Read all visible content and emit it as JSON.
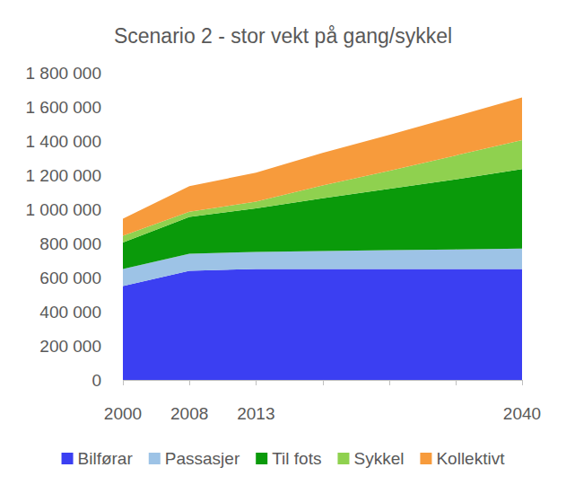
{
  "chart_data": {
    "type": "area",
    "stacked": true,
    "title": "Scenario 2 - stor vekt på gang/sykkel",
    "categories": [
      "2000",
      "2008",
      "2013",
      null,
      null,
      null,
      "2040"
    ],
    "series": [
      {
        "name": "Bilførar",
        "color": "#3b3ff2",
        "values": [
          550000,
          640000,
          650000,
          650000,
          650000,
          650000,
          650000
        ]
      },
      {
        "name": "Passasjer",
        "color": "#9dc3e6",
        "values": [
          100000,
          100000,
          100000,
          105000,
          110000,
          115000,
          120000
        ]
      },
      {
        "name": "Til fots",
        "color": "#0a9a0a",
        "values": [
          155000,
          215000,
          255000,
          310000,
          360000,
          410000,
          465000
        ]
      },
      {
        "name": "Sykkel",
        "color": "#8fd14f",
        "values": [
          40000,
          30000,
          40000,
          75000,
          105000,
          140000,
          170000
        ]
      },
      {
        "name": "Kollektivt",
        "color": "#f79b3c",
        "values": [
          100000,
          150000,
          170000,
          190000,
          210000,
          230000,
          250000
        ]
      }
    ],
    "ylim": [
      0,
      1800000
    ],
    "yticks": [
      0,
      {
        "value": 200000,
        "label": "200 000"
      },
      {
        "value": 400000,
        "label": "400 000"
      },
      {
        "value": 600000,
        "label": "600 000"
      },
      {
        "value": 800000,
        "label": "800 000"
      },
      {
        "value": 1000000,
        "label": "1 000 000"
      },
      {
        "value": 1200000,
        "label": "1 200 000"
      },
      {
        "value": 1400000,
        "label": "1 400 000"
      },
      {
        "value": 1600000,
        "label": "1 600 000"
      },
      {
        "value": 1800000,
        "label": "1 800 000"
      }
    ],
    "grid": false,
    "legend": "bottom"
  }
}
